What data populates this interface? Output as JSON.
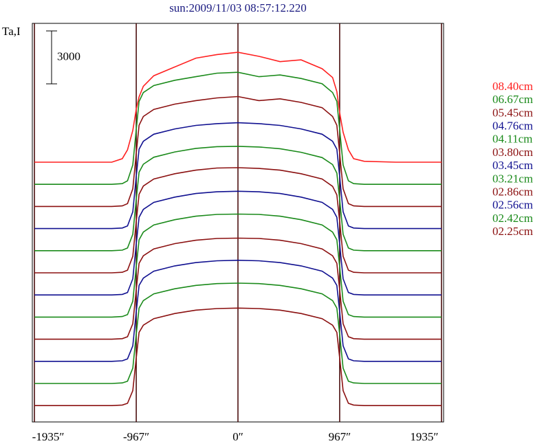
{
  "chart_data": {
    "type": "line",
    "title": "sun:2009/11/03 08:57:12.220",
    "y_label": "Ta,I",
    "scale_bar": 3000,
    "xlim": [
      -1955,
      1955
    ],
    "xticks": [
      {
        "value": -1935,
        "label": "-1935″"
      },
      {
        "value": -967,
        "label": "-967″"
      },
      {
        "value": 0,
        "label": "0″"
      },
      {
        "value": 967,
        "label": "967″"
      },
      {
        "value": 1935,
        "label": "1935″"
      }
    ],
    "grid": true,
    "x": [
      -1935,
      -1500,
      -1200,
      -1100,
      -1050,
      -1000,
      -967,
      -940,
      -900,
      -800,
      -600,
      -400,
      -200,
      0,
      200,
      400,
      600,
      800,
      900,
      940,
      967,
      1000,
      1050,
      1100,
      1200,
      1500,
      1935
    ],
    "series": [
      {
        "name": "08.40cm",
        "color": "#ff2020",
        "values": [
          0,
          0,
          0,
          200,
          700,
          1800,
          3000,
          3700,
          4300,
          4900,
          5400,
          5900,
          6100,
          6230,
          6000,
          5700,
          5800,
          5300,
          4800,
          4000,
          2800,
          1700,
          700,
          200,
          50,
          0,
          0
        ]
      },
      {
        "name": "06.67cm",
        "color": "#1a8a1a",
        "values": [
          0,
          0,
          0,
          40,
          200,
          1100,
          3100,
          4700,
          5200,
          5600,
          5900,
          6100,
          6300,
          6350,
          6100,
          6200,
          6000,
          5700,
          5200,
          4700,
          3100,
          1100,
          200,
          40,
          0,
          0,
          0
        ]
      },
      {
        "name": "05.45cm",
        "color": "#8b1010",
        "values": [
          0,
          0,
          0,
          30,
          160,
          1000,
          3000,
          4600,
          5100,
          5500,
          5800,
          6000,
          6150,
          6230,
          6000,
          6100,
          5900,
          5600,
          5100,
          4600,
          3000,
          1000,
          160,
          30,
          0,
          0,
          0
        ]
      },
      {
        "name": "04.76cm",
        "color": "#101090",
        "values": [
          0,
          0,
          0,
          30,
          150,
          950,
          2950,
          4500,
          4950,
          5350,
          5650,
          5850,
          5950,
          6000,
          5950,
          5850,
          5650,
          5350,
          4950,
          4500,
          2950,
          950,
          150,
          30,
          0,
          0,
          0
        ]
      },
      {
        "name": "04.11cm",
        "color": "#1a8a1a",
        "values": [
          0,
          0,
          0,
          30,
          150,
          930,
          2900,
          4450,
          4900,
          5300,
          5600,
          5800,
          5900,
          5920,
          5880,
          5780,
          5580,
          5280,
          4880,
          4400,
          2900,
          930,
          150,
          30,
          0,
          0,
          0
        ]
      },
      {
        "name": "03.80cm",
        "color": "#8b1010",
        "values": [
          0,
          0,
          0,
          30,
          150,
          940,
          2900,
          4450,
          4920,
          5320,
          5620,
          5820,
          5940,
          5960,
          5920,
          5820,
          5620,
          5320,
          4900,
          4420,
          2900,
          940,
          150,
          30,
          0,
          0,
          0
        ]
      },
      {
        "name": "03.45cm",
        "color": "#101090",
        "values": [
          0,
          0,
          0,
          30,
          140,
          920,
          2880,
          4400,
          4850,
          5250,
          5550,
          5750,
          5850,
          5880,
          5850,
          5750,
          5550,
          5250,
          4850,
          4400,
          2880,
          920,
          140,
          30,
          0,
          0,
          0
        ]
      },
      {
        "name": "03.21cm",
        "color": "#1a8a1a",
        "values": [
          0,
          0,
          0,
          30,
          140,
          900,
          2850,
          4380,
          4820,
          5220,
          5520,
          5720,
          5820,
          5840,
          5820,
          5720,
          5520,
          5220,
          4820,
          4380,
          2850,
          900,
          140,
          30,
          0,
          0,
          0
        ]
      },
      {
        "name": "02.86cm",
        "color": "#8b1010",
        "values": [
          0,
          0,
          0,
          30,
          140,
          880,
          2800,
          4300,
          4730,
          5120,
          5420,
          5610,
          5710,
          5730,
          5710,
          5610,
          5420,
          5120,
          4730,
          4300,
          2800,
          880,
          140,
          30,
          0,
          0,
          0
        ]
      },
      {
        "name": "02.56cm",
        "color": "#101090",
        "values": [
          0,
          0,
          0,
          30,
          140,
          880,
          2800,
          4300,
          4720,
          5110,
          5410,
          5600,
          5700,
          5730,
          5700,
          5600,
          5410,
          5110,
          4720,
          4300,
          2800,
          880,
          140,
          30,
          0,
          0,
          0
        ]
      },
      {
        "name": "02.42cm",
        "color": "#1a8a1a",
        "values": [
          0,
          0,
          0,
          30,
          130,
          870,
          2780,
          4270,
          4700,
          5080,
          5370,
          5560,
          5660,
          5690,
          5660,
          5560,
          5370,
          5080,
          4700,
          4270,
          2780,
          870,
          130,
          30,
          0,
          0,
          0
        ]
      },
      {
        "name": "02.25cm",
        "color": "#8b1010",
        "values": [
          0,
          0,
          0,
          30,
          130,
          850,
          2700,
          4150,
          4560,
          4930,
          5220,
          5410,
          5500,
          5530,
          5500,
          5410,
          5220,
          4930,
          4560,
          4150,
          2700,
          850,
          130,
          30,
          0,
          0,
          0
        ]
      }
    ]
  }
}
